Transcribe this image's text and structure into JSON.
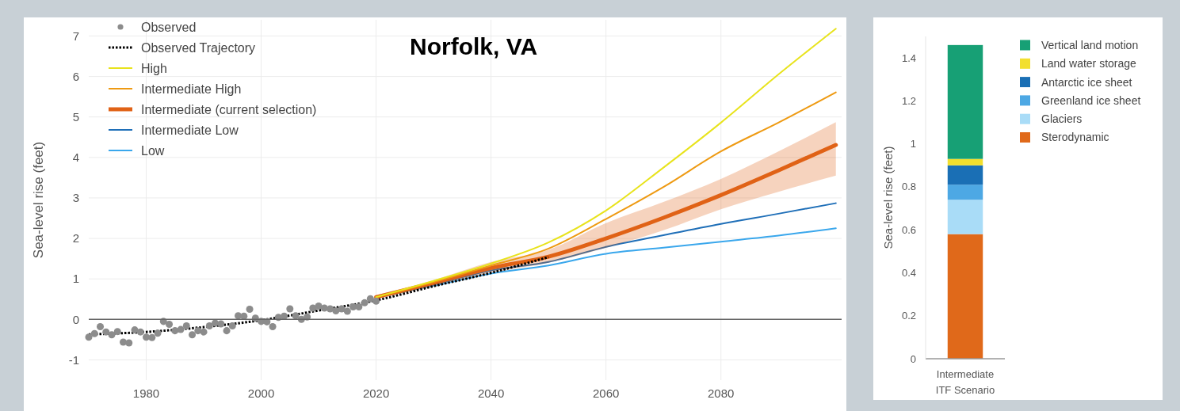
{
  "chart_data": [
    {
      "type": "line",
      "title": "Norfolk, VA",
      "ylabel": "Sea-level rise (feet)",
      "xlim": [
        1970,
        2101
      ],
      "ylim": [
        -1.5,
        7.4
      ],
      "xticks": [
        1980,
        2000,
        2020,
        2040,
        2060,
        2080
      ],
      "yticks": [
        -1,
        0,
        1,
        2,
        3,
        4,
        5,
        6,
        7
      ],
      "grid": true,
      "legend": "top left",
      "ref_lines": [
        {
          "axis": "y",
          "value": 0,
          "color": "#666666"
        }
      ],
      "series": [
        {
          "name": "Observed",
          "type": "scatter",
          "marker": "circle",
          "color": "#8c8c8c",
          "x": [
            1970,
            1971,
            1972,
            1973,
            1974,
            1975,
            1976,
            1977,
            1978,
            1979,
            1980,
            1981,
            1982,
            1983,
            1984,
            1985,
            1986,
            1987,
            1988,
            1989,
            1990,
            1991,
            1992,
            1993,
            1994,
            1995,
            1996,
            1997,
            1998,
            1999,
            2000,
            2001,
            2002,
            2003,
            2004,
            2005,
            2006,
            2007,
            2008,
            2009,
            2010,
            2011,
            2012,
            2013,
            2014,
            2015,
            2016,
            2017,
            2018,
            2019,
            2020
          ],
          "values": [
            -0.44,
            -0.35,
            -0.18,
            -0.31,
            -0.38,
            -0.3,
            -0.56,
            -0.58,
            -0.26,
            -0.31,
            -0.44,
            -0.45,
            -0.34,
            -0.05,
            -0.12,
            -0.28,
            -0.25,
            -0.16,
            -0.38,
            -0.28,
            -0.31,
            -0.16,
            -0.09,
            -0.11,
            -0.28,
            -0.16,
            0.09,
            0.08,
            0.25,
            0.03,
            -0.05,
            -0.06,
            -0.18,
            0.05,
            0.08,
            0.26,
            0.09,
            0,
            0.06,
            0.28,
            0.33,
            0.28,
            0.26,
            0.21,
            0.26,
            0.2,
            0.31,
            0.31,
            0.41,
            0.51,
            0.45
          ]
        },
        {
          "name": "Observed Trajectory",
          "line_style": "dotted",
          "color": "#000000",
          "x": [
            1970,
            1980,
            1990,
            2000,
            2010,
            2020,
            2030,
            2040,
            2050
          ],
          "values": [
            -0.37,
            -0.31,
            -0.19,
            -0.02,
            0.22,
            0.47,
            0.82,
            1.15,
            1.54
          ]
        },
        {
          "name": "High",
          "line_style": "solid",
          "color": "#e8e31c",
          "x": [
            2020,
            2030,
            2040,
            2050,
            2060,
            2070,
            2080,
            2090,
            2100
          ],
          "values": [
            0.55,
            0.95,
            1.38,
            1.9,
            2.69,
            3.75,
            4.86,
            6.05,
            7.18
          ]
        },
        {
          "name": "Intermediate High",
          "line_style": "solid",
          "color": "#ee9a12",
          "x": [
            2020,
            2030,
            2040,
            2050,
            2060,
            2070,
            2080,
            2090,
            2100
          ],
          "values": [
            0.55,
            0.92,
            1.33,
            1.75,
            2.48,
            3.27,
            4.15,
            4.86,
            5.61
          ]
        },
        {
          "name": "Intermediate (current selection)",
          "line_style": "solid",
          "color": "#e06216",
          "x": [
            2020,
            2030,
            2040,
            2050,
            2060,
            2070,
            2080,
            2090,
            2100
          ],
          "values": [
            0.55,
            0.9,
            1.27,
            1.55,
            2.0,
            2.51,
            3.07,
            3.68,
            4.31
          ],
          "lower": [
            0.5,
            0.82,
            1.15,
            1.4,
            1.77,
            2.2,
            2.72,
            3.15,
            3.55
          ],
          "upper": [
            0.6,
            0.97,
            1.42,
            1.72,
            2.38,
            2.9,
            3.47,
            4.15,
            4.87
          ]
        },
        {
          "name": "Intermediate Low",
          "line_style": "solid",
          "color": "#1f6fb8",
          "x": [
            2020,
            2030,
            2040,
            2050,
            2060,
            2070,
            2080,
            2090,
            2100
          ],
          "values": [
            0.55,
            0.86,
            1.21,
            1.42,
            1.79,
            2.08,
            2.36,
            2.61,
            2.87
          ]
        },
        {
          "name": "Low",
          "line_style": "solid",
          "color": "#3aa7ec",
          "x": [
            2020,
            2030,
            2040,
            2050,
            2060,
            2070,
            2080,
            2090,
            2100
          ],
          "values": [
            0.55,
            0.83,
            1.13,
            1.33,
            1.62,
            1.77,
            1.92,
            2.07,
            2.25
          ]
        }
      ]
    },
    {
      "type": "bar",
      "stacked": true,
      "ylabel": "Sea-level rise (feet)",
      "categories": [
        "Intermediate ITF Scenario"
      ],
      "ylim": [
        0,
        1.5
      ],
      "yticks": [
        0,
        0.2,
        0.4,
        0.6,
        0.8,
        1,
        1.2,
        1.4
      ],
      "grid": false,
      "legend": "right",
      "series": [
        {
          "name": "Sterodynamic",
          "color": "#e0691a",
          "values": [
            0.58
          ]
        },
        {
          "name": "Glaciers",
          "color": "#a9dcf7",
          "values": [
            0.16
          ]
        },
        {
          "name": "Greenland ice sheet",
          "color": "#4da8e4",
          "values": [
            0.07
          ]
        },
        {
          "name": "Antarctic ice sheet",
          "color": "#1a6fb5",
          "values": [
            0.09
          ]
        },
        {
          "name": "Land water storage",
          "color": "#f2df2e",
          "values": [
            0.03
          ]
        },
        {
          "name": "Vertical land motion",
          "color": "#17a075",
          "values": [
            0.53
          ]
        }
      ]
    }
  ]
}
